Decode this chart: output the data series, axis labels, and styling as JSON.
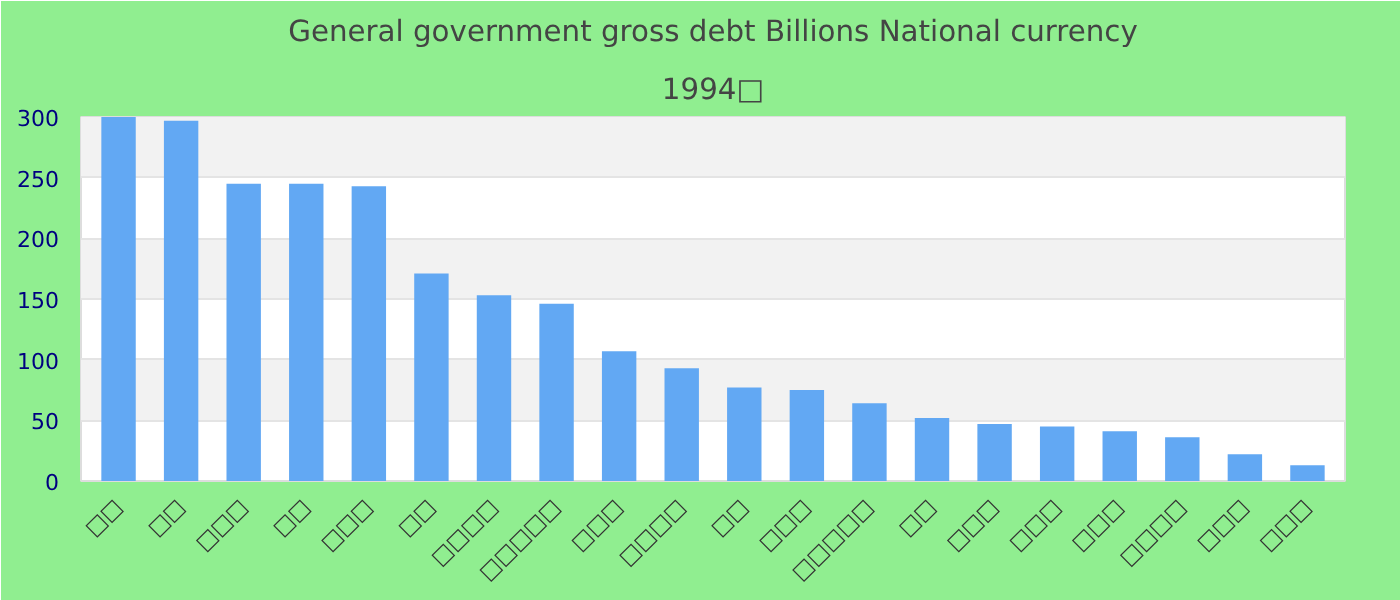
{
  "chart_data": {
    "type": "bar",
    "title": "General government gross debt Billions National currency",
    "subtitle": "1994□",
    "categories": [
      "□□",
      "□□",
      "□□□",
      "□□",
      "□□□",
      "□□",
      "□□□□",
      "□□□□□",
      "□□□",
      "□□□□",
      "□□",
      "□□□",
      "□□□□□",
      "□□",
      "□□□",
      "□□□",
      "□□□",
      "□□□□",
      "□□□",
      "□□□"
    ],
    "values": [
      300,
      297,
      245,
      245,
      243,
      171,
      153,
      146,
      107,
      93,
      77,
      75,
      64,
      52,
      47,
      45,
      41,
      36,
      22,
      13
    ],
    "color": "#62a8f3",
    "ylim": [
      0,
      300
    ],
    "yticks": [
      0,
      50,
      100,
      150,
      200,
      250,
      300
    ],
    "grid": "y"
  }
}
